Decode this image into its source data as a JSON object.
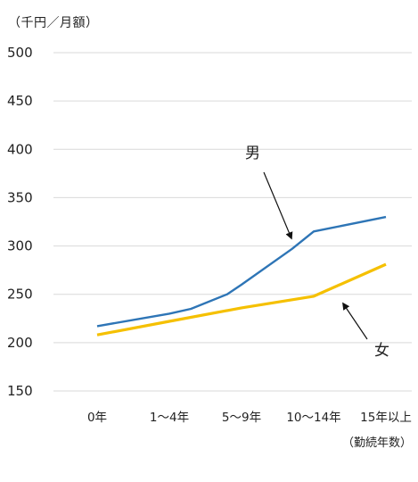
{
  "chart_data": {
    "type": "line",
    "unit_label": "（千円／月額）",
    "xlabel": "（勤続年数）",
    "categories": [
      "0年",
      "1～4年",
      "5～9年",
      "10～14年",
      "15年以上"
    ],
    "ylim": [
      150,
      500
    ],
    "yticks": [
      150,
      200,
      250,
      300,
      350,
      400,
      450,
      500
    ],
    "grid": true,
    "series": [
      {
        "name": "男",
        "color": "#2e75b6",
        "values": [
          217,
          230,
          260,
          315,
          330
        ],
        "extra_points": [
          {
            "x_index": 1.3,
            "y": 235
          },
          {
            "x_index": 1.8,
            "y": 250
          },
          {
            "x_index": 2.7,
            "y": 297
          }
        ]
      },
      {
        "name": "女",
        "color": "#f5c000",
        "values": [
          208,
          222,
          236,
          248,
          281
        ]
      }
    ]
  }
}
